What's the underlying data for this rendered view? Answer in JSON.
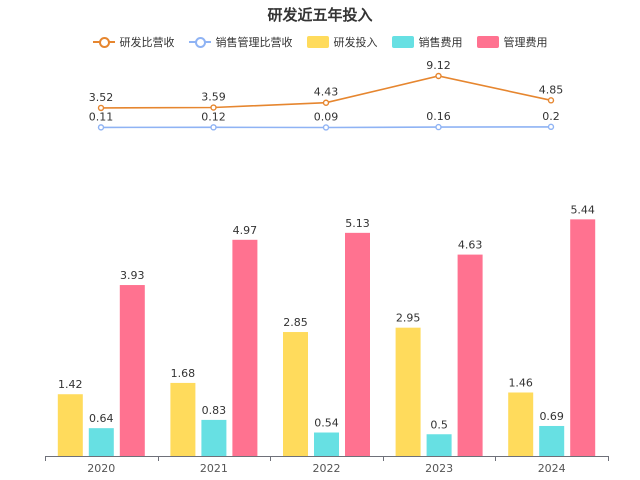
{
  "chart_data": {
    "type": "bar",
    "title": "研发近五年投入",
    "categories": [
      "2020",
      "2021",
      "2022",
      "2023",
      "2024"
    ],
    "series": [
      {
        "name": "研发投入",
        "type": "bar",
        "color": "#ffdb5c",
        "values": [
          1.42,
          1.68,
          2.85,
          2.95,
          1.46
        ],
        "labels": [
          "1.42",
          "1.68",
          "2.85",
          "2.95",
          "1.46"
        ]
      },
      {
        "name": "销售费用",
        "type": "bar",
        "color": "#67e0e3",
        "values": [
          0.64,
          0.83,
          0.54,
          0.5,
          0.69
        ],
        "labels": [
          "0.64",
          "0.83",
          "0.54",
          "0.5",
          "0.69"
        ]
      },
      {
        "name": "管理费用",
        "type": "bar",
        "color": "#ff7290",
        "values": [
          3.93,
          4.97,
          5.13,
          4.63,
          5.44
        ],
        "labels": [
          "3.93",
          "4.97",
          "5.13",
          "4.63",
          "5.44"
        ]
      }
    ],
    "line_series": [
      {
        "name": "研发比营收",
        "type": "line",
        "color": "#e6862f",
        "values": [
          3.52,
          3.59,
          4.43,
          9.12,
          4.85
        ],
        "labels": [
          "3.52",
          "3.59",
          "4.43",
          "9.12",
          "4.85"
        ]
      },
      {
        "name": "销售管理比营收",
        "type": "line",
        "color": "#8fb3f4",
        "values": [
          0.11,
          0.12,
          0.09,
          0.16,
          0.2
        ],
        "labels": [
          "0.11",
          "0.12",
          "0.09",
          "0.16",
          "0.2"
        ]
      }
    ],
    "legend_order": [
      "研发比营收",
      "销售管理比营收",
      "研发投入",
      "销售费用",
      "管理费用"
    ],
    "legend_position": "top-center",
    "grid": false
  }
}
